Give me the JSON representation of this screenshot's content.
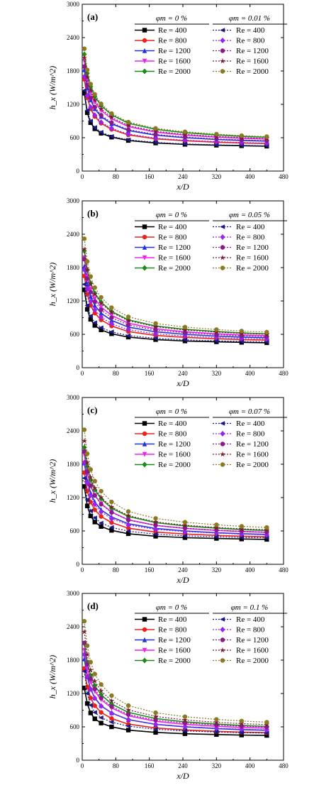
{
  "chart_data": [
    {
      "type": "line",
      "panel_label": "(a)",
      "ylabel": "h_x (W/m^2)",
      "xlabel": "x/D",
      "xlim": [
        0,
        480
      ],
      "ylim": [
        0,
        3000
      ],
      "x_ticks": [
        "0",
        "80",
        "160",
        "240",
        "320",
        "400",
        "480"
      ],
      "y_ticks": [
        "0",
        "600",
        "1200",
        "1800",
        "2400",
        "3000"
      ],
      "legend_left_header": "φm = 0 %",
      "legend_right_header": "φm = 0.01 %",
      "x": [
        5,
        12,
        20,
        30,
        45,
        70,
        110,
        175,
        245,
        320,
        380,
        440
      ],
      "series": [
        {
          "name": "Re = 400",
          "group": "base",
          "color": "#000000",
          "marker": "square",
          "values": [
            1400,
            1050,
            870,
            760,
            680,
            610,
            550,
            505,
            480,
            465,
            455,
            448
          ]
        },
        {
          "name": "Re = 800",
          "group": "base",
          "color": "#e8231b",
          "marker": "circle",
          "values": [
            1650,
            1320,
            1120,
            980,
            860,
            750,
            650,
            580,
            545,
            520,
            505,
            495
          ]
        },
        {
          "name": "Re = 1200",
          "group": "base",
          "color": "#2233dd",
          "marker": "triangle-up",
          "values": [
            1820,
            1500,
            1280,
            1120,
            980,
            850,
            730,
            645,
            600,
            568,
            550,
            538
          ]
        },
        {
          "name": "Re = 1600",
          "group": "base",
          "color": "#ee22ee",
          "marker": "triangle-down",
          "values": [
            1980,
            1640,
            1410,
            1240,
            1090,
            940,
            800,
            700,
            645,
            610,
            590,
            575
          ]
        },
        {
          "name": "Re = 2000",
          "group": "base",
          "color": "#1a8a1a",
          "marker": "diamond",
          "values": [
            2100,
            1760,
            1520,
            1340,
            1180,
            1010,
            860,
            750,
            690,
            650,
            625,
            608
          ]
        },
        {
          "name": "Re = 400",
          "group": "nano",
          "color": "#1a1a8a",
          "marker": "triangle-left",
          "values": [
            1450,
            1090,
            900,
            785,
            700,
            625,
            562,
            515,
            488,
            472,
            462,
            454
          ]
        },
        {
          "name": "Re = 800",
          "group": "nano",
          "color": "#9922ee",
          "marker": "diamond",
          "values": [
            1700,
            1360,
            1150,
            1005,
            880,
            768,
            665,
            592,
            555,
            530,
            514,
            503
          ]
        },
        {
          "name": "Re = 1200",
          "group": "nano",
          "color": "#8a1a8a",
          "marker": "circle",
          "values": [
            1880,
            1545,
            1315,
            1150,
            1005,
            870,
            745,
            658,
            612,
            578,
            560,
            547
          ]
        },
        {
          "name": "Re = 1600",
          "group": "nano",
          "color": "#7a1a33",
          "marker": "star",
          "values": [
            2040,
            1690,
            1450,
            1275,
            1120,
            965,
            820,
            716,
            660,
            623,
            602,
            586
          ]
        },
        {
          "name": "Re = 2000",
          "group": "nano",
          "color": "#8a7a22",
          "marker": "circle",
          "values": [
            2200,
            1820,
            1565,
            1380,
            1210,
            1035,
            880,
            768,
            706,
            664,
            638,
            620
          ]
        }
      ]
    },
    {
      "type": "line",
      "panel_label": "(b)",
      "ylabel": "h_x (W/m^2)",
      "xlabel": "x/D",
      "xlim": [
        0,
        480
      ],
      "ylim": [
        0,
        3000
      ],
      "x_ticks": [
        "0",
        "80",
        "160",
        "240",
        "320",
        "400",
        "480"
      ],
      "y_ticks": [
        "0",
        "600",
        "1200",
        "1800",
        "2400",
        "3000"
      ],
      "legend_left_header": "φm = 0 %",
      "legend_right_header": "φm = 0.05 %",
      "x": [
        5,
        12,
        20,
        30,
        45,
        70,
        110,
        175,
        245,
        320,
        380,
        440
      ],
      "series": [
        {
          "name": "Re = 400",
          "group": "base",
          "color": "#000000",
          "marker": "square",
          "values": [
            1400,
            1050,
            870,
            760,
            680,
            610,
            550,
            505,
            480,
            465,
            455,
            448
          ]
        },
        {
          "name": "Re = 800",
          "group": "base",
          "color": "#e8231b",
          "marker": "circle",
          "values": [
            1650,
            1320,
            1120,
            980,
            860,
            750,
            650,
            580,
            545,
            520,
            505,
            495
          ]
        },
        {
          "name": "Re = 1200",
          "group": "base",
          "color": "#2233dd",
          "marker": "triangle-up",
          "values": [
            1820,
            1500,
            1280,
            1120,
            980,
            850,
            730,
            645,
            600,
            568,
            550,
            538
          ]
        },
        {
          "name": "Re = 1600",
          "group": "base",
          "color": "#ee22ee",
          "marker": "triangle-down",
          "values": [
            1980,
            1640,
            1410,
            1240,
            1090,
            940,
            800,
            700,
            645,
            610,
            590,
            575
          ]
        },
        {
          "name": "Re = 2000",
          "group": "base",
          "color": "#1a8a1a",
          "marker": "diamond",
          "values": [
            2100,
            1760,
            1520,
            1340,
            1180,
            1010,
            860,
            750,
            690,
            650,
            625,
            608
          ]
        },
        {
          "name": "Re = 400",
          "group": "nano",
          "color": "#1a1a8a",
          "marker": "triangle-left",
          "values": [
            1500,
            1120,
            930,
            810,
            720,
            645,
            578,
            528,
            500,
            483,
            472,
            464
          ]
        },
        {
          "name": "Re = 800",
          "group": "nano",
          "color": "#9922ee",
          "marker": "diamond",
          "values": [
            1760,
            1410,
            1190,
            1040,
            910,
            790,
            685,
            608,
            570,
            543,
            527,
            515
          ]
        },
        {
          "name": "Re = 1200",
          "group": "nano",
          "color": "#8a1a8a",
          "marker": "circle",
          "values": [
            1950,
            1600,
            1360,
            1190,
            1040,
            898,
            768,
            676,
            628,
            593,
            574,
            560
          ]
        },
        {
          "name": "Re = 1600",
          "group": "nano",
          "color": "#7a1a33",
          "marker": "star",
          "values": [
            2130,
            1760,
            1505,
            1320,
            1160,
            995,
            845,
            737,
            678,
            640,
            618,
            601
          ]
        },
        {
          "name": "Re = 2000",
          "group": "nano",
          "color": "#8a7a22",
          "marker": "circle",
          "values": [
            2320,
            1910,
            1640,
            1440,
            1265,
            1080,
            915,
            796,
            730,
            686,
            659,
            640
          ]
        }
      ]
    },
    {
      "type": "line",
      "panel_label": "(c)",
      "ylabel": "h_x (W/m^2)",
      "xlabel": "x/D",
      "xlim": [
        0,
        480
      ],
      "ylim": [
        0,
        3000
      ],
      "x_ticks": [
        "0",
        "80",
        "160",
        "240",
        "320",
        "400",
        "480"
      ],
      "y_ticks": [
        "0",
        "600",
        "1200",
        "1800",
        "2400",
        "3000"
      ],
      "legend_left_header": "φm = 0 %",
      "legend_right_header": "φm = 0.07 %",
      "x": [
        5,
        12,
        20,
        30,
        45,
        70,
        110,
        175,
        245,
        320,
        380,
        440
      ],
      "series": [
        {
          "name": "Re = 400",
          "group": "base",
          "color": "#000000",
          "marker": "square",
          "values": [
            1400,
            1050,
            870,
            760,
            680,
            610,
            550,
            505,
            480,
            465,
            455,
            448
          ]
        },
        {
          "name": "Re = 800",
          "group": "base",
          "color": "#e8231b",
          "marker": "circle",
          "values": [
            1650,
            1320,
            1120,
            980,
            860,
            750,
            650,
            580,
            545,
            520,
            505,
            495
          ]
        },
        {
          "name": "Re = 1200",
          "group": "base",
          "color": "#2233dd",
          "marker": "triangle-up",
          "values": [
            1820,
            1500,
            1280,
            1120,
            980,
            850,
            730,
            645,
            600,
            568,
            550,
            538
          ]
        },
        {
          "name": "Re = 1600",
          "group": "base",
          "color": "#ee22ee",
          "marker": "triangle-down",
          "values": [
            1980,
            1640,
            1410,
            1240,
            1090,
            940,
            800,
            700,
            645,
            610,
            590,
            575
          ]
        },
        {
          "name": "Re = 2000",
          "group": "base",
          "color": "#1a8a1a",
          "marker": "diamond",
          "values": [
            2100,
            1760,
            1520,
            1340,
            1180,
            1010,
            860,
            750,
            690,
            650,
            625,
            608
          ]
        },
        {
          "name": "Re = 400",
          "group": "nano",
          "color": "#1a1a8a",
          "marker": "triangle-left",
          "values": [
            1550,
            1160,
            960,
            835,
            742,
            665,
            595,
            542,
            513,
            495,
            484,
            476
          ]
        },
        {
          "name": "Re = 800",
          "group": "nano",
          "color": "#9922ee",
          "marker": "diamond",
          "values": [
            1830,
            1460,
            1235,
            1078,
            942,
            818,
            708,
            628,
            588,
            560,
            543,
            531
          ]
        },
        {
          "name": "Re = 1200",
          "group": "nano",
          "color": "#8a1a8a",
          "marker": "circle",
          "values": [
            2030,
            1665,
            1415,
            1237,
            1080,
            932,
            796,
            700,
            650,
            614,
            594,
            579
          ]
        },
        {
          "name": "Re = 1600",
          "group": "nano",
          "color": "#7a1a33",
          "marker": "star",
          "values": [
            2220,
            1830,
            1565,
            1372,
            1205,
            1032,
            876,
            763,
            702,
            662,
            639,
            621
          ]
        },
        {
          "name": "Re = 2000",
          "group": "nano",
          "color": "#8a7a22",
          "marker": "circle",
          "values": [
            2420,
            1990,
            1705,
            1497,
            1315,
            1122,
            950,
            826,
            757,
            711,
            683,
            663
          ]
        }
      ]
    },
    {
      "type": "line",
      "panel_label": "(d)",
      "ylabel": "h_x (W/m^2)",
      "xlabel": "x/D",
      "xlim": [
        0,
        480
      ],
      "ylim": [
        0,
        3000
      ],
      "x_ticks": [
        "0",
        "80",
        "160",
        "240",
        "320",
        "400",
        "480"
      ],
      "y_ticks": [
        "0",
        "600",
        "1200",
        "1800",
        "2400",
        "3000"
      ],
      "legend_left_header": "φm = 0 %",
      "legend_right_header": "φm = 0.1 %",
      "x": [
        5,
        12,
        20,
        30,
        45,
        70,
        110,
        175,
        245,
        320,
        380,
        440
      ],
      "series": [
        {
          "name": "Re = 400",
          "group": "base",
          "color": "#000000",
          "marker": "square",
          "values": [
            1300,
            1020,
            850,
            745,
            668,
            600,
            542,
            500,
            476,
            462,
            453,
            446
          ]
        },
        {
          "name": "Re = 800",
          "group": "base",
          "color": "#e8231b",
          "marker": "circle",
          "values": [
            1650,
            1320,
            1120,
            980,
            860,
            750,
            650,
            580,
            545,
            520,
            505,
            495
          ]
        },
        {
          "name": "Re = 1200",
          "group": "base",
          "color": "#2233dd",
          "marker": "triangle-up",
          "values": [
            1820,
            1500,
            1280,
            1120,
            980,
            850,
            730,
            645,
            600,
            568,
            550,
            538
          ]
        },
        {
          "name": "Re = 1600",
          "group": "base",
          "color": "#ee22ee",
          "marker": "triangle-down",
          "values": [
            1980,
            1640,
            1410,
            1240,
            1090,
            940,
            800,
            700,
            645,
            610,
            590,
            575
          ]
        },
        {
          "name": "Re = 2000",
          "group": "base",
          "color": "#1a8a1a",
          "marker": "diamond",
          "values": [
            2100,
            1760,
            1520,
            1340,
            1180,
            1010,
            860,
            750,
            690,
            650,
            625,
            608
          ]
        },
        {
          "name": "Re = 400",
          "group": "nano",
          "color": "#1a1a8a",
          "marker": "triangle-left",
          "values": [
            1600,
            1200,
            990,
            860,
            765,
            685,
            612,
            557,
            527,
            508,
            496,
            488
          ]
        },
        {
          "name": "Re = 800",
          "group": "nano",
          "color": "#9922ee",
          "marker": "diamond",
          "values": [
            1900,
            1510,
            1278,
            1115,
            975,
            846,
            732,
            648,
            606,
            577,
            559,
            546
          ]
        },
        {
          "name": "Re = 1200",
          "group": "nano",
          "color": "#8a1a8a",
          "marker": "circle",
          "values": [
            2110,
            1725,
            1465,
            1280,
            1118,
            964,
            822,
            722,
            670,
            633,
            612,
            596
          ]
        },
        {
          "name": "Re = 1600",
          "group": "nano",
          "color": "#7a1a33",
          "marker": "star",
          "values": [
            2310,
            1900,
            1622,
            1422,
            1248,
            1068,
            905,
            788,
            724,
            682,
            658,
            640
          ]
        },
        {
          "name": "Re = 2000",
          "group": "nano",
          "color": "#8a7a22",
          "marker": "circle",
          "values": [
            2500,
            2060,
            1765,
            1550,
            1362,
            1162,
            983,
            854,
            782,
            734,
            705,
            684
          ]
        }
      ]
    }
  ]
}
